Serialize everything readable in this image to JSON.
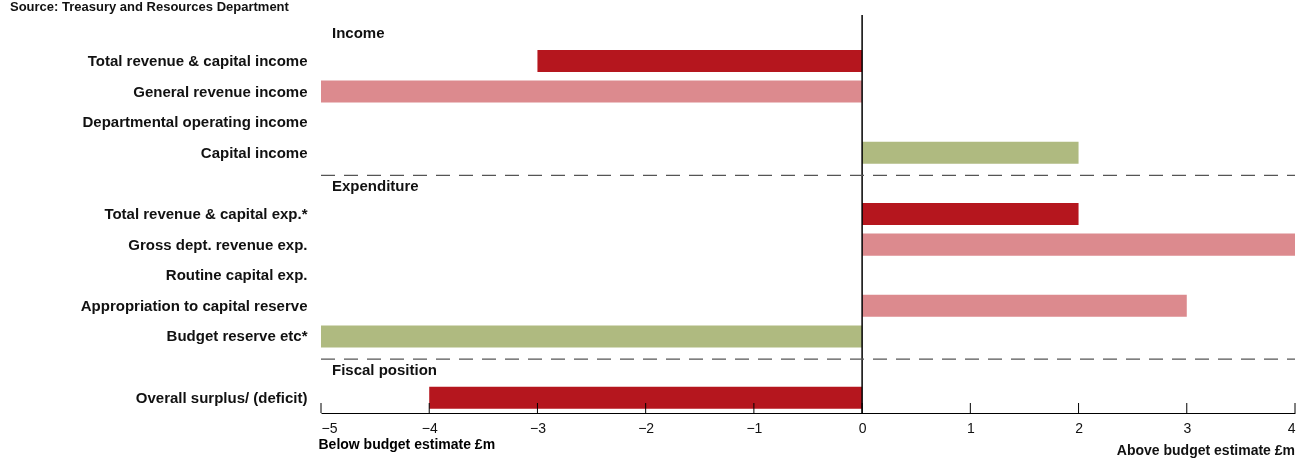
{
  "chart_data": {
    "type": "bar",
    "orientation": "horizontal",
    "annotations": [
      "Source: Treasury and Resources Department",
      "Above budget estimate £m"
    ],
    "xlabel": "Below budget estimate £m",
    "categories": [
      "Income",
      "Total revenue & capital income",
      "General revenue income",
      "Departmental operating income",
      "Capital income",
      "Expenditure",
      "Total revenue & capital exp.*",
      "Gross dept. revenue exp.",
      "Routine capital exp.",
      "Appropriation to capital reserve",
      "Budget reserve etc*",
      "Fiscal position",
      "Overall surplus/ (deficit)"
    ],
    "values": [
      null,
      -3,
      -5,
      0,
      2,
      null,
      2,
      4,
      0,
      3,
      -5,
      null,
      -4
    ],
    "colors": [
      null,
      "#b5161e",
      "#dc8a8e",
      null,
      "#afba80",
      null,
      "#b5161e",
      "#dc8a8e",
      null,
      "#dc8a8e",
      "#afba80",
      null,
      "#b5161e"
    ],
    "xlim": [
      -5,
      4
    ],
    "xticks": [
      -5,
      -4,
      -3,
      -2,
      -1,
      0,
      1,
      2,
      3,
      4
    ],
    "grid": false,
    "ref_lines": [
      {
        "axis": "x",
        "value": 0,
        "color": "#000000",
        "line_style": "solid"
      },
      {
        "axis": "y",
        "value": "Expenditure",
        "color": "#555555",
        "line_style": "dashed"
      },
      {
        "axis": "y",
        "value": "Fiscal position",
        "color": "#555555",
        "line_style": "dashed"
      }
    ]
  }
}
